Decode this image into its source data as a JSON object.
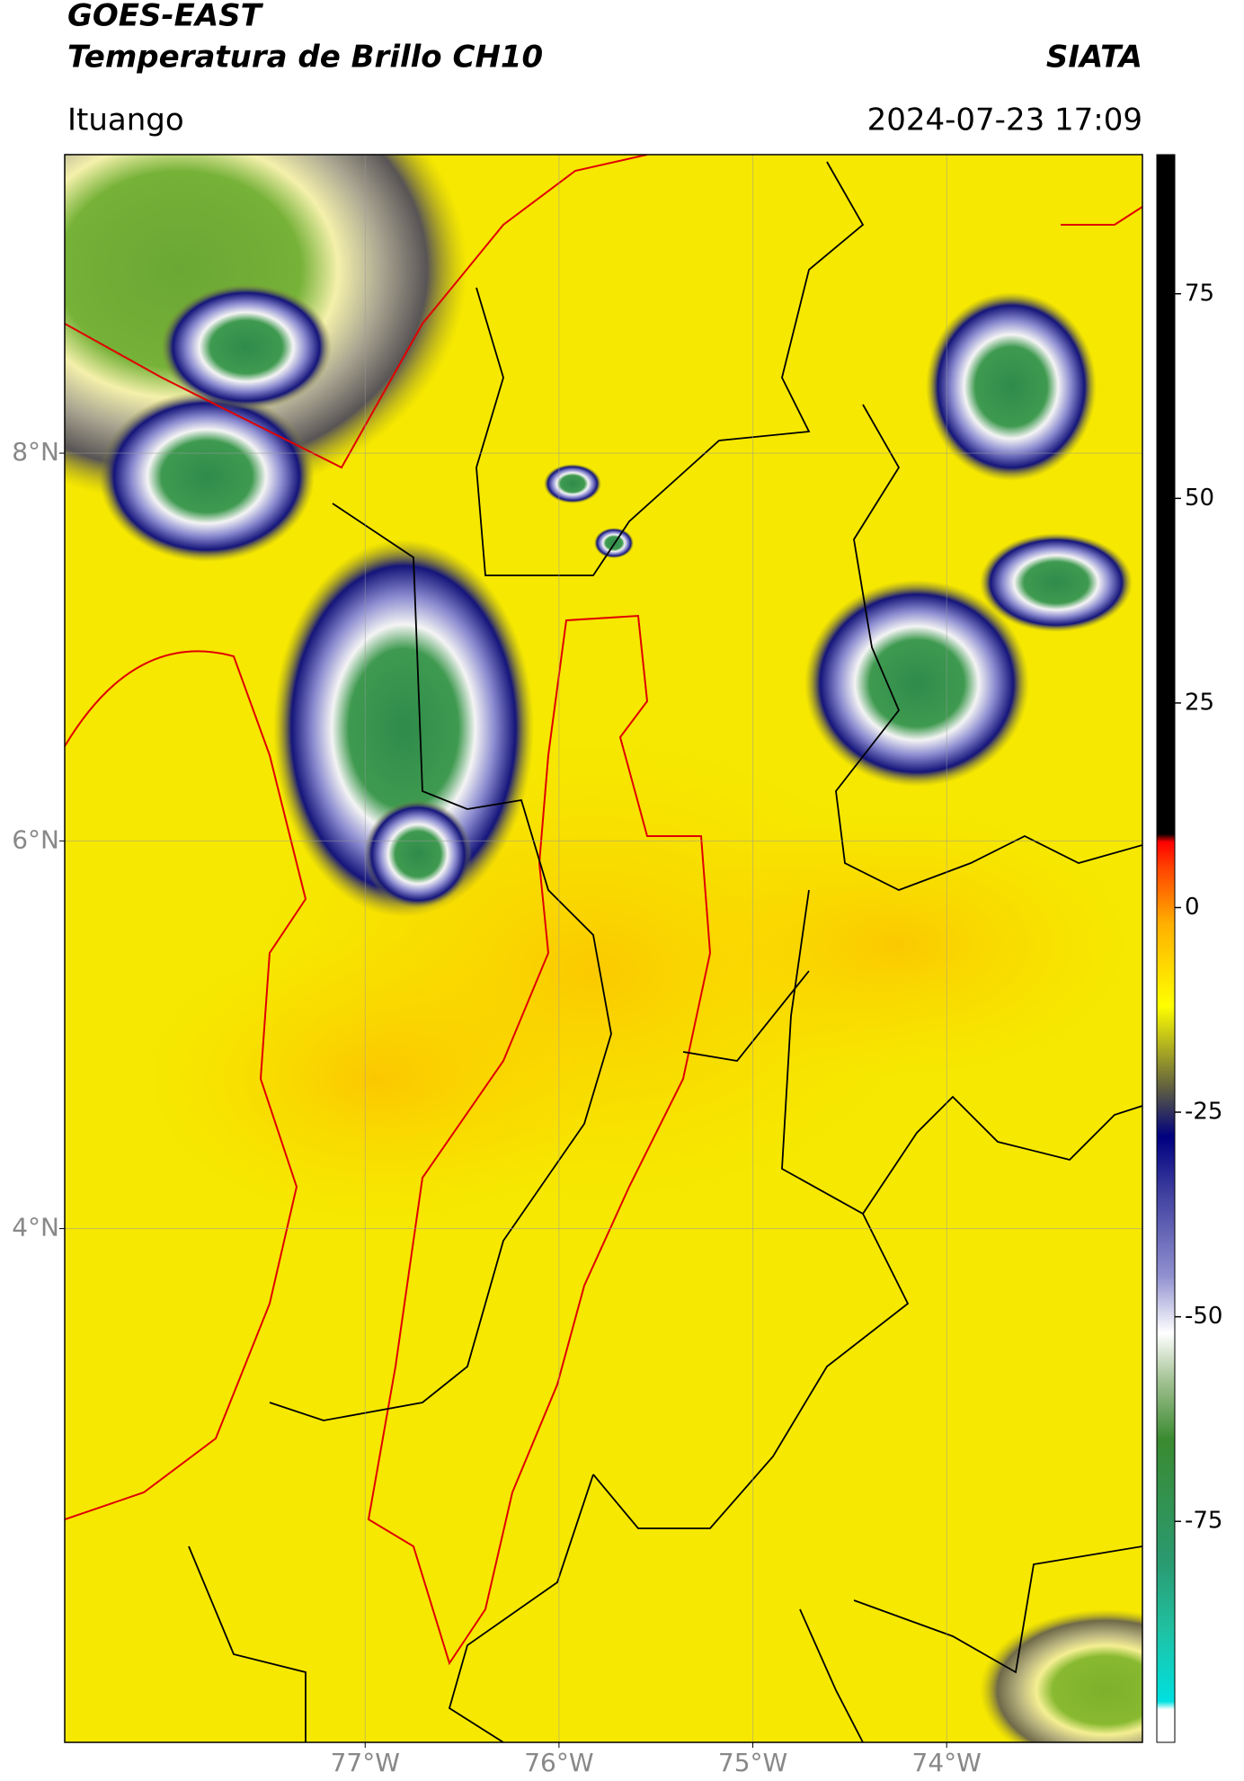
{
  "header": {
    "title": "GOES-EAST",
    "subtitle": "Temperatura de Brillo CH10",
    "source": "SIATA",
    "location": "Ituango",
    "timestamp": "2024-07-23 17:09"
  },
  "map": {
    "xlim": [
      -78.55,
      -72.99
    ],
    "ylim": [
      1.35,
      9.54
    ],
    "xticks": [
      {
        "value": -77,
        "label": "77°W"
      },
      {
        "value": -76,
        "label": "76°W"
      },
      {
        "value": -75,
        "label": "75°W"
      },
      {
        "value": -74,
        "label": "74°W"
      }
    ],
    "yticks": [
      {
        "value": 8,
        "label": "8°N"
      },
      {
        "value": 6,
        "label": "6°N"
      },
      {
        "value": 4,
        "label": "4°N"
      }
    ],
    "grid": true
  },
  "colorbar": {
    "lim": [
      -102,
      92
    ],
    "ticks": [
      75,
      50,
      25,
      0,
      -25,
      -50,
      -75
    ],
    "stops": [
      [
        -102,
        "#ffffff"
      ],
      [
        -98,
        "#ffffff"
      ],
      [
        -97,
        "#00e0e0"
      ],
      [
        -88,
        "#20c0a0"
      ],
      [
        -80,
        "#2a9a70"
      ],
      [
        -65,
        "#3a8a30"
      ],
      [
        -58,
        "#a0c090"
      ],
      [
        -52,
        "#ffffff"
      ],
      [
        -45,
        "#9090d0"
      ],
      [
        -35,
        "#4040a0"
      ],
      [
        -28,
        "#000080"
      ],
      [
        -22,
        "#606040"
      ],
      [
        -17,
        "#b0b020"
      ],
      [
        -12,
        "#ffff00"
      ],
      [
        -2,
        "#ffb000"
      ],
      [
        5,
        "#ff4000"
      ],
      [
        8,
        "#ff0000"
      ],
      [
        9,
        "#000000"
      ],
      [
        92,
        "#000000"
      ]
    ]
  }
}
